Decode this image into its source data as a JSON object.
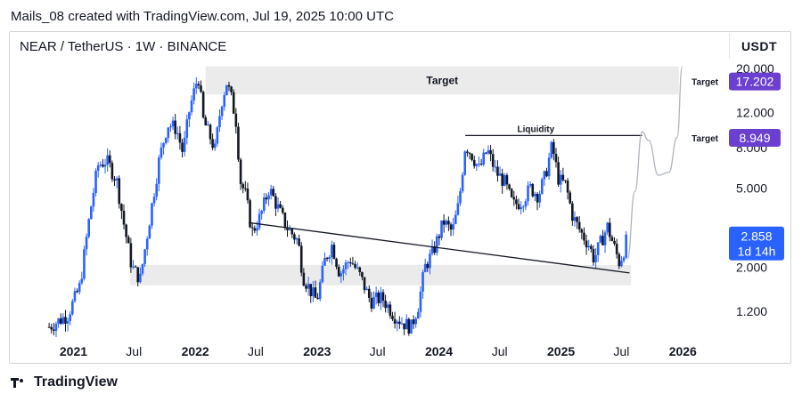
{
  "caption": "Mails_08 created with TradingView.com, Jul 19, 2025 10:00 UTC",
  "symbol": "NEAR / TetherUS · 1W · BINANCE",
  "currency": "USDT",
  "footer_brand": "TradingView",
  "colors": {
    "up": "#2962ff",
    "down": "#131722",
    "zone": "#ebebeb",
    "badge_purple": "#6b3fcf",
    "badge_blue": "#2962ff",
    "projection": "#b2b5be"
  },
  "icons": {
    "brand": "tradingview-logo-icon"
  },
  "chart_data": {
    "type": "candlestick",
    "title": "NEAR / TetherUS · 1W · BINANCE",
    "y_scale": "log",
    "ylim": [
      0.88,
      21.5
    ],
    "xlim": [
      "2020-10-01",
      "2026-04-01"
    ],
    "x_ticks": [
      {
        "label": "2021",
        "date": "2021-01-01",
        "bold": true
      },
      {
        "label": "Jul",
        "date": "2021-07-01",
        "bold": false
      },
      {
        "label": "2022",
        "date": "2022-01-01",
        "bold": true
      },
      {
        "label": "Jul",
        "date": "2022-07-01",
        "bold": false
      },
      {
        "label": "2023",
        "date": "2023-01-01",
        "bold": true
      },
      {
        "label": "Jul",
        "date": "2023-07-01",
        "bold": false
      },
      {
        "label": "2024",
        "date": "2024-01-01",
        "bold": true
      },
      {
        "label": "Jul",
        "date": "2024-07-01",
        "bold": false
      },
      {
        "label": "2025",
        "date": "2025-01-01",
        "bold": true
      },
      {
        "label": "Jul",
        "date": "2025-07-01",
        "bold": false
      },
      {
        "label": "2026",
        "date": "2026-01-01",
        "bold": true
      }
    ],
    "y_ticks": [
      "20.000",
      "12.000",
      "8.000",
      "5.000",
      "2.000",
      "1.200"
    ],
    "y_tick_values": [
      20,
      12,
      8,
      5,
      2,
      1.2
    ],
    "price_path": [
      [
        "2020-10-20",
        1.0
      ],
      [
        "2020-12-15",
        1.15
      ],
      [
        "2021-01-20",
        1.6
      ],
      [
        "2021-02-20",
        3.8
      ],
      [
        "2021-03-15",
        6.5
      ],
      [
        "2021-04-10",
        6.9
      ],
      [
        "2021-05-10",
        5.5
      ],
      [
        "2021-06-01",
        3.3
      ],
      [
        "2021-06-25",
        2.0
      ],
      [
        "2021-07-20",
        1.75
      ],
      [
        "2021-08-15",
        3.3
      ],
      [
        "2021-09-15",
        7.0
      ],
      [
        "2021-10-10",
        10.5
      ],
      [
        "2021-11-05",
        10.0
      ],
      [
        "2021-11-25",
        7.5
      ],
      [
        "2021-12-15",
        12.5
      ],
      [
        "2022-01-10",
        18.5
      ],
      [
        "2022-01-25",
        11.0
      ],
      [
        "2022-02-15",
        9.0
      ],
      [
        "2022-03-01",
        7.8
      ],
      [
        "2022-03-20",
        13.5
      ],
      [
        "2022-04-05",
        17.0
      ],
      [
        "2022-04-20",
        14.0
      ],
      [
        "2022-05-05",
        10.5
      ],
      [
        "2022-05-15",
        5.5
      ],
      [
        "2022-06-01",
        4.6
      ],
      [
        "2022-06-20",
        3.0
      ],
      [
        "2022-07-15",
        3.6
      ],
      [
        "2022-08-10",
        5.0
      ],
      [
        "2022-09-05",
        4.0
      ],
      [
        "2022-10-01",
        3.2
      ],
      [
        "2022-11-05",
        2.7
      ],
      [
        "2022-11-20",
        1.8
      ],
      [
        "2022-12-10",
        1.55
      ],
      [
        "2022-12-31",
        1.35
      ],
      [
        "2023-01-25",
        2.2
      ],
      [
        "2023-02-15",
        2.6
      ],
      [
        "2023-03-10",
        1.85
      ],
      [
        "2023-04-10",
        2.2
      ],
      [
        "2023-05-10",
        1.8
      ],
      [
        "2023-06-10",
        1.35
      ],
      [
        "2023-07-15",
        1.4
      ],
      [
        "2023-08-20",
        1.15
      ],
      [
        "2023-09-15",
        1.05
      ],
      [
        "2023-10-10",
        1.0
      ],
      [
        "2023-11-01",
        1.3
      ],
      [
        "2023-11-20",
        2.0
      ],
      [
        "2023-12-15",
        2.4
      ],
      [
        "2024-01-15",
        3.4
      ],
      [
        "2024-02-10",
        3.0
      ],
      [
        "2024-03-01",
        4.2
      ],
      [
        "2024-03-20",
        8.3
      ],
      [
        "2024-04-10",
        7.3
      ],
      [
        "2024-05-01",
        6.2
      ],
      [
        "2024-05-25",
        7.8
      ],
      [
        "2024-06-20",
        6.0
      ],
      [
        "2024-07-15",
        5.4
      ],
      [
        "2024-08-10",
        4.1
      ],
      [
        "2024-09-05",
        4.3
      ],
      [
        "2024-10-01",
        5.0
      ],
      [
        "2024-10-25",
        4.6
      ],
      [
        "2024-11-15",
        5.8
      ],
      [
        "2024-12-05",
        8.2
      ],
      [
        "2024-12-25",
        5.5
      ],
      [
        "2025-01-15",
        5.2
      ],
      [
        "2025-02-05",
        3.6
      ],
      [
        "2025-03-01",
        3.0
      ],
      [
        "2025-03-25",
        2.6
      ],
      [
        "2025-04-10",
        2.2
      ],
      [
        "2025-05-01",
        2.7
      ],
      [
        "2025-05-20",
        3.2
      ],
      [
        "2025-06-10",
        2.5
      ],
      [
        "2025-06-25",
        2.1
      ],
      [
        "2025-07-10",
        2.5
      ],
      [
        "2025-07-19",
        2.858
      ]
    ],
    "zones": [
      {
        "label": "Target",
        "x_start": "2022-02-01",
        "x_end": "2025-12-20",
        "y_low": 14.8,
        "y_high": 20.5
      },
      {
        "label": "",
        "x_start": "2021-06-20",
        "x_end": "2025-07-30",
        "y_low": 1.62,
        "y_high": 2.05
      }
    ],
    "trendline": {
      "x_start": "2022-06-10",
      "y_start": 3.35,
      "x_end": "2025-07-25",
      "y_end": 1.87
    },
    "liquidity_line": {
      "label": "Liquidity",
      "x_start": "2024-03-20",
      "x_end": "2025-09-01",
      "y": 9.2
    },
    "projection_path": [
      [
        "2025-07-19",
        2.2
      ],
      [
        "2025-08-10",
        4.8
      ],
      [
        "2025-09-01",
        9.6
      ],
      [
        "2025-09-20",
        8.7
      ],
      [
        "2025-10-20",
        5.8
      ],
      [
        "2025-11-20",
        6.0
      ],
      [
        "2025-12-15",
        9.0
      ],
      [
        "2025-12-30",
        20.5
      ]
    ],
    "price_badges": [
      {
        "note": "Target",
        "value": "17.202",
        "y": 17.202,
        "color": "#6b3fcf"
      },
      {
        "note": "Target",
        "value": "8.949",
        "y": 8.949,
        "color": "#6b3fcf"
      },
      {
        "note": "",
        "value": "2.858",
        "sub": "1d 14h",
        "y": 2.858,
        "color": "#2962ff"
      }
    ]
  }
}
